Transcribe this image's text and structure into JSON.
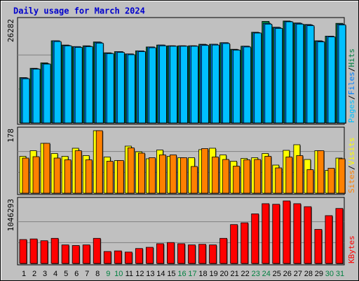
{
  "chart_data": {
    "type": "bar",
    "title": "Daily usage for March 2024",
    "colors": {
      "background": "#ffffff",
      "frame": "#c0c0c0",
      "plot": "#c0c0c0",
      "title": "#0000cc",
      "pages": "#0080ff",
      "files": "#00c0ff",
      "hits": "#008040",
      "visits": "#ffff00",
      "sites": "#ff8000",
      "kbytes": "#ff0000",
      "slash": "#000000",
      "weekday_tick": "#000000",
      "weekend_tick": "#008040"
    },
    "days": [
      "1",
      "2",
      "3",
      "4",
      "5",
      "6",
      "7",
      "8",
      "9",
      "10",
      "11",
      "12",
      "13",
      "14",
      "15",
      "16",
      "17",
      "18",
      "19",
      "20",
      "21",
      "22",
      "23",
      "24",
      "25",
      "26",
      "27",
      "28",
      "29",
      "30",
      "31"
    ],
    "weekend_days": [
      "9",
      "10",
      "16",
      "17",
      "23",
      "24",
      "30",
      "31"
    ],
    "panels": [
      {
        "id": "hits",
        "ymax_label": "26282",
        "ymax": 26282,
        "label_parts": [
          {
            "text": "Pages",
            "color_key": "files"
          },
          {
            "text": "/",
            "color_key": "slash"
          },
          {
            "text": "Files",
            "color_key": "pages"
          },
          {
            "text": "/",
            "color_key": "slash"
          },
          {
            "text": "Hits",
            "color_key": "hits"
          }
        ],
        "series": [
          {
            "name": "Hits",
            "color_key": "hits",
            "values": [
              11700,
              14100,
              15500,
              21200,
              20100,
              19700,
              19900,
              20900,
              18100,
              18400,
              17800,
              18600,
              19600,
              20100,
              19900,
              19900,
              19900,
              20300,
              20300,
              20700,
              19000,
              19800,
              23400,
              26200,
              24700,
              26300,
              25800,
              25400,
              21200,
              22400,
              25700
            ]
          },
          {
            "name": "Files",
            "color_key": "pages",
            "values": [
              11600,
              14000,
              15300,
              21200,
              20000,
              19700,
              19800,
              20800,
              18000,
              18400,
              17800,
              18600,
              19600,
              20100,
              19900,
              19900,
              19900,
              20200,
              20300,
              20700,
              18900,
              19800,
              23300,
              25700,
              24600,
              26200,
              25700,
              25300,
              21100,
              22400,
              25500
            ]
          },
          {
            "name": "Pages",
            "color_key": "files",
            "values": [
              11400,
              13900,
              15200,
              21000,
              19900,
              19500,
              19700,
              20600,
              17900,
              18200,
              17600,
              18400,
              19400,
              19900,
              19800,
              19800,
              19800,
              20000,
              20100,
              20500,
              18800,
              19600,
              23200,
              25500,
              24400,
              26100,
              25500,
              25100,
              20900,
              22200,
              25300
            ]
          }
        ]
      },
      {
        "id": "visits",
        "ymax_label": "178",
        "ymax": 178,
        "label_parts": [
          {
            "text": "Sites",
            "color_key": "sites"
          },
          {
            "text": "/",
            "color_key": "slash"
          },
          {
            "text": "Visits",
            "color_key": "visits"
          }
        ],
        "series": [
          {
            "name": "Visits",
            "color_key": "visits",
            "values": [
              105,
              121,
              142,
              113,
              105,
              128,
              107,
              178,
              103,
              93,
              134,
              118,
              98,
              123,
              105,
              101,
              101,
              124,
              128,
              109,
              91,
              99,
              101,
              113,
              80,
              122,
              138,
              96,
              121,
              65,
              100
            ]
          },
          {
            "name": "Sites",
            "color_key": "sites",
            "values": [
              100,
              104,
              142,
              100,
              95,
              121,
              95,
              178,
              91,
              93,
              129,
              114,
              101,
              109,
              109,
              101,
              76,
              127,
              103,
              96,
              77,
              95,
              96,
              105,
              72,
              103,
              107,
              67,
              121,
              71,
              98
            ]
          }
        ]
      },
      {
        "id": "kbytes",
        "ymax_label": "1046293",
        "ymax": 1046293,
        "label_parts": [
          {
            "text": "KBytes",
            "color_key": "kbytes"
          }
        ],
        "series": [
          {
            "name": "KBytes",
            "color_key": "kbytes",
            "values": [
              400000,
              410000,
              380000,
              420000,
              310000,
              300000,
              310000,
              420000,
              200000,
              210000,
              190000,
              250000,
              270000,
              330000,
              350000,
              330000,
              310000,
              320000,
              310000,
              420000,
              650000,
              680000,
              830000,
              1000000,
              990000,
              1046293,
              1000000,
              950000,
              570000,
              800000,
              920000
            ]
          }
        ]
      }
    ]
  }
}
